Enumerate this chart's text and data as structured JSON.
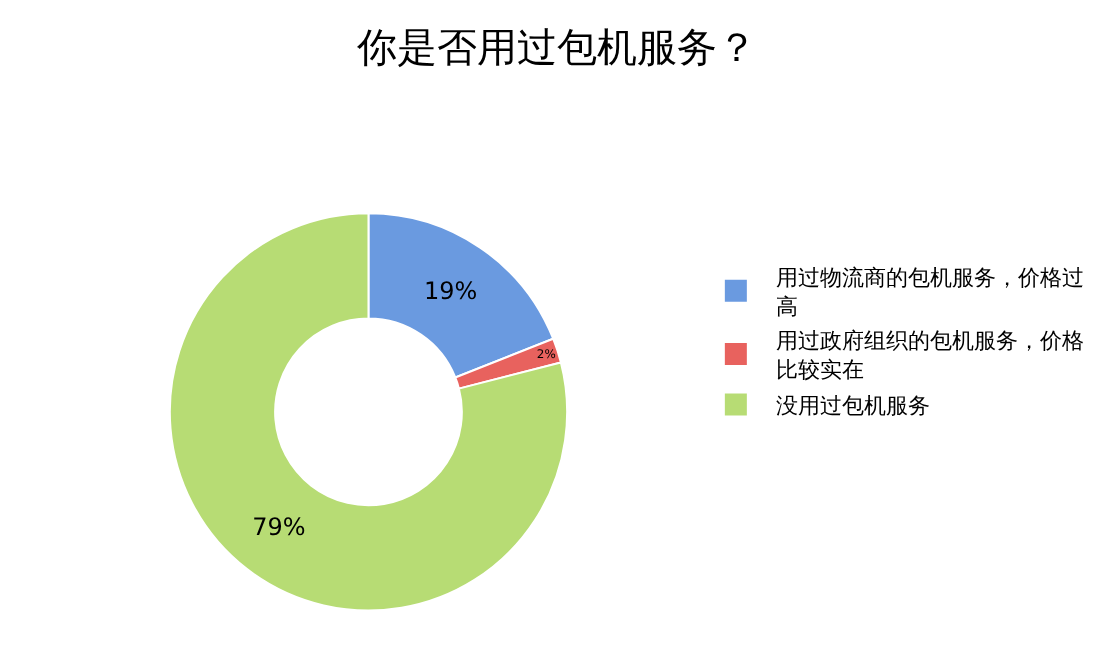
{
  "chart_data": {
    "type": "donut",
    "title": "你是否用过包机服务？",
    "categories": [
      "用过物流商的包机服务，价格过高",
      "用过政府组织的包机服务，价格比较实在",
      "没用过包机服务"
    ],
    "values": [
      19,
      2,
      79
    ],
    "colors": [
      "#6a9ae0",
      "#e8625e",
      "#b7dc74"
    ],
    "value_labels": [
      "19%",
      "2%",
      "79%"
    ],
    "legend": "right"
  }
}
